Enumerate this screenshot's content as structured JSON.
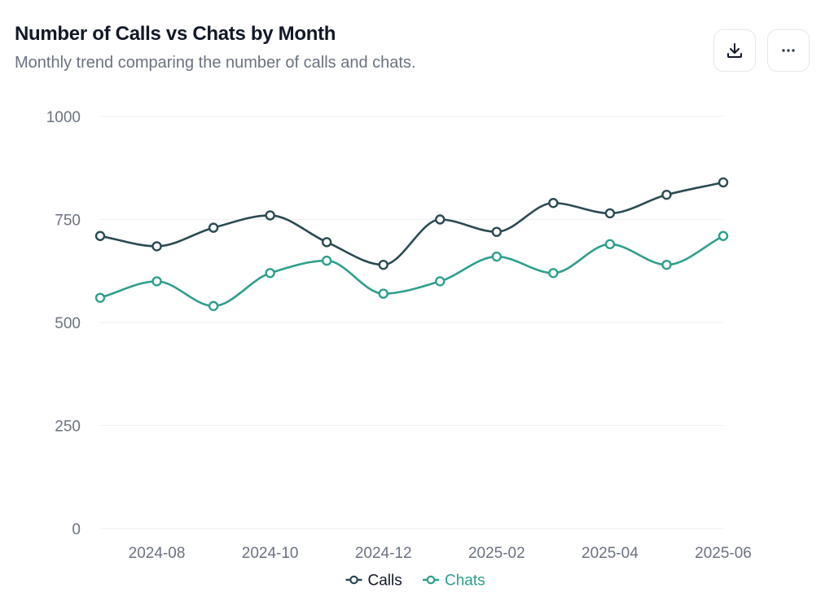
{
  "header": {
    "title": "Number of Calls vs Chats by Month",
    "subtitle": "Monthly trend comparing the number of calls and chats."
  },
  "toolbar": {
    "download_icon": "download-icon",
    "more_icon": "more-horizontal-icon"
  },
  "colors": {
    "calls": "#2a4a52",
    "chats": "#2d9f8c",
    "grid": "#f0f1f3",
    "axis_text": "#6b7280"
  },
  "chart_data": {
    "type": "line",
    "title": "Number of Calls vs Chats by Month",
    "subtitle": "Monthly trend comparing the number of calls and chats.",
    "x": [
      "2024-07",
      "2024-08",
      "2024-09",
      "2024-10",
      "2024-11",
      "2024-12",
      "2025-01",
      "2025-02",
      "2025-03",
      "2025-04",
      "2025-05",
      "2025-06"
    ],
    "x_tick_labels": [
      "2024-08",
      "2024-10",
      "2024-12",
      "2025-02",
      "2025-04",
      "2025-06"
    ],
    "y_ticks": [
      0,
      250,
      500,
      750,
      1000
    ],
    "ylim": [
      0,
      1000
    ],
    "grid": true,
    "legend_position": "bottom-center",
    "series": [
      {
        "name": "Calls",
        "color": "#2a4a52",
        "values": [
          710,
          685,
          730,
          760,
          695,
          640,
          750,
          720,
          790,
          765,
          810,
          840
        ]
      },
      {
        "name": "Chats",
        "color": "#2d9f8c",
        "values": [
          560,
          600,
          540,
          620,
          650,
          570,
          600,
          660,
          620,
          690,
          640,
          710
        ]
      }
    ]
  }
}
